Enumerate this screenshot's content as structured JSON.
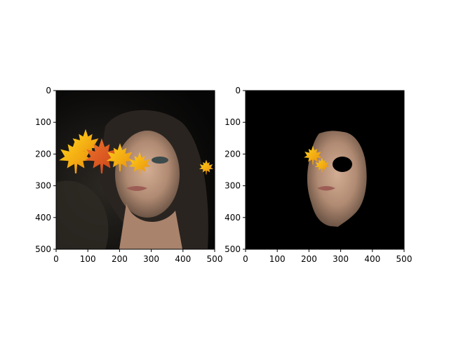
{
  "figure": {
    "background": "#ffffff",
    "panels": 2
  },
  "chart_data": [
    {
      "type": "image",
      "content": "photo of a woman's face with orange autumn maple leaves overlaid across the eyes and hair",
      "xlim": [
        0,
        500
      ],
      "ylim": [
        500,
        0
      ],
      "xticks": [
        0,
        100,
        200,
        300,
        400,
        500
      ],
      "yticks": [
        0,
        100,
        200,
        300,
        400,
        500
      ],
      "xtick_labels": [
        "0",
        "100",
        "200",
        "300",
        "400",
        "500"
      ],
      "ytick_labels": [
        "0",
        "100",
        "200",
        "300",
        "400",
        "500"
      ],
      "title": "",
      "xlabel": "",
      "ylabel": "",
      "colors": {
        "background": "#0b0a09",
        "leaf": "#f5a20f",
        "leaf_dark": "#e2581b",
        "skin": "#b89078",
        "hair": "#2a2420"
      }
    },
    {
      "type": "image",
      "content": "segmented face region on black background; leaves remaining over the eye area, left eye region masked out",
      "xlim": [
        0,
        500
      ],
      "ylim": [
        500,
        0
      ],
      "xticks": [
        0,
        100,
        200,
        300,
        400,
        500
      ],
      "yticks": [
        0,
        100,
        200,
        300,
        400,
        500
      ],
      "xtick_labels": [
        "0",
        "100",
        "200",
        "300",
        "400",
        "500"
      ],
      "ytick_labels": [
        "0",
        "100",
        "200",
        "300",
        "400",
        "500"
      ],
      "title": "",
      "xlabel": "",
      "ylabel": "",
      "colors": {
        "background": "#000000",
        "leaf": "#f5a20f",
        "skin": "#b89078"
      }
    }
  ]
}
